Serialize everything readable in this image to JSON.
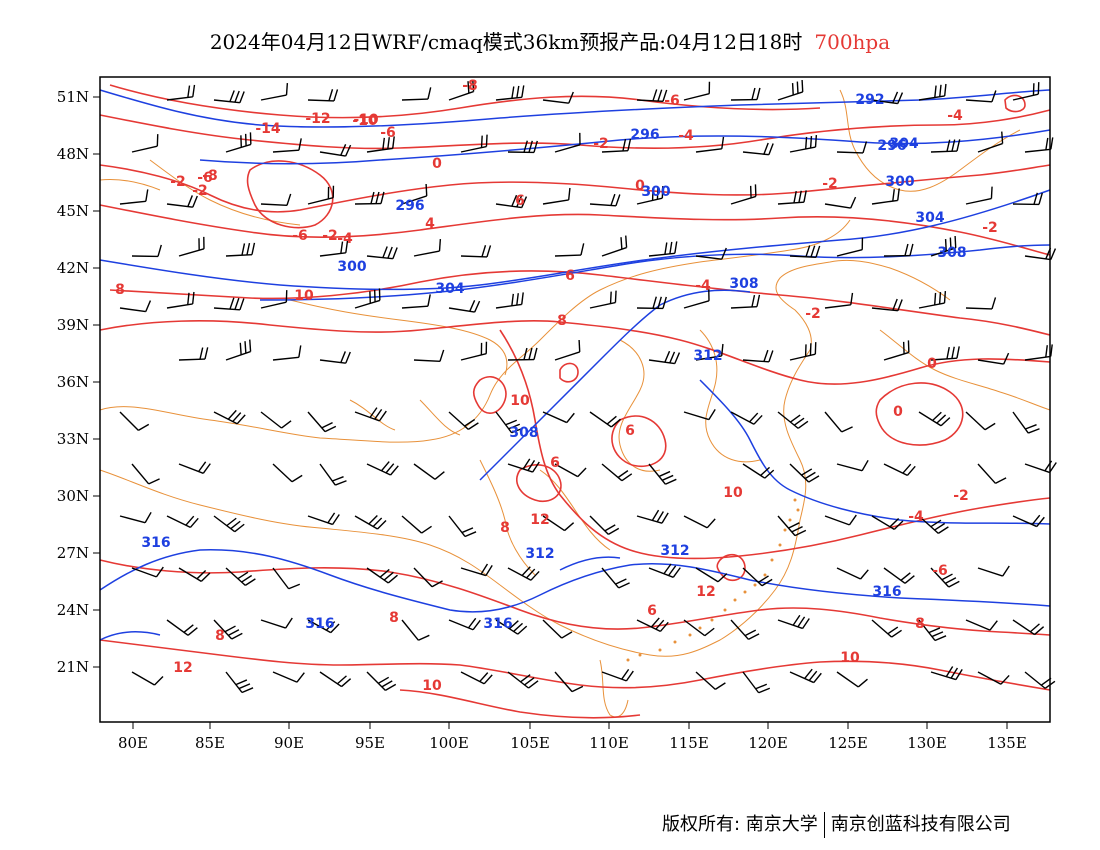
{
  "header": {
    "title": "2024年04月12日WRF/cmaq模式36km预报产品:04月12日18时",
    "level": "700hpa",
    "level_color": "#e53935"
  },
  "map": {
    "lon_ticks": [
      "80E",
      "85E",
      "90E",
      "95E",
      "100E",
      "105E",
      "110E",
      "115E",
      "120E",
      "125E",
      "130E",
      "135E"
    ],
    "lat_ticks": [
      "51N",
      "48N",
      "45N",
      "42N",
      "39N",
      "36N",
      "33N",
      "30N",
      "27N",
      "24N",
      "21N"
    ],
    "colors": {
      "temperature_contour": "#e53935",
      "height_contour": "#1e40e0",
      "boundaries": "#e8913a",
      "wind_barb": "#000000"
    },
    "temperature_labels": [
      "-8",
      "-6",
      "-14",
      "-12",
      "-10",
      "-6",
      "-6",
      "-2",
      "-4",
      "-8",
      "-2",
      "0",
      "-2",
      "-10",
      "-6",
      "-2",
      "-4",
      "0",
      "-2",
      "-4",
      "-2",
      "4",
      "6",
      "6",
      "-4",
      "-2",
      "0",
      "0",
      "-2",
      "-4",
      "8",
      "6",
      "10",
      "6",
      "8",
      "12",
      "10",
      "12",
      "6",
      "8",
      "10",
      "10",
      "-6",
      "8",
      "8",
      "12",
      "10",
      "8"
    ],
    "height_labels": [
      "292",
      "296",
      "296",
      "300",
      "296",
      "300",
      "304",
      "308",
      "308",
      "304",
      "312",
      "308",
      "312",
      "316",
      "312",
      "316",
      "316",
      "316",
      "304",
      "300"
    ]
  },
  "footer": {
    "copyright": "版权所有: 南京大学",
    "company": "南京创蓝科技有限公司"
  }
}
